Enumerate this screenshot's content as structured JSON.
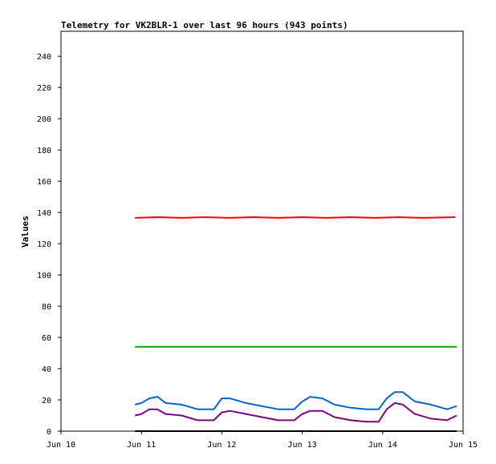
{
  "chart_data": {
    "type": "line",
    "title": "Telemetry for VK2BLR-1 over last 96 hours (943 points)",
    "xlabel": "",
    "ylabel": "Values",
    "x_ticks": [
      "Jun 10",
      "Jun 11",
      "Jun 12",
      "Jun 13",
      "Jun 14",
      "Jun 15"
    ],
    "y_ticks": [
      0,
      20,
      40,
      60,
      80,
      100,
      120,
      140,
      160,
      180,
      200,
      220,
      240
    ],
    "xlim": [
      0,
      5
    ],
    "ylim": [
      0,
      256
    ],
    "grid": false,
    "legend": "none",
    "series": [
      {
        "color": "#ff0000",
        "x": [
          0.92,
          1.2,
          1.5,
          1.8,
          2.1,
          2.4,
          2.7,
          3.0,
          3.3,
          3.6,
          3.9,
          4.2,
          4.5,
          4.9
        ],
        "y": [
          136.5,
          137,
          136.5,
          137,
          136.5,
          137,
          136.5,
          137,
          136.5,
          137,
          136.5,
          137,
          136.5,
          137
        ]
      },
      {
        "color": "#00aa00",
        "x": [
          0.92,
          4.92
        ],
        "y": [
          54,
          54
        ]
      },
      {
        "color": "#0066cc",
        "x": [
          0.92,
          1.0,
          1.1,
          1.2,
          1.3,
          1.5,
          1.7,
          1.9,
          2.0,
          2.1,
          2.3,
          2.5,
          2.7,
          2.9,
          3.0,
          3.1,
          3.25,
          3.4,
          3.6,
          3.8,
          3.95,
          4.05,
          4.15,
          4.25,
          4.4,
          4.6,
          4.8,
          4.92
        ],
        "y": [
          17,
          18,
          21,
          22,
          18,
          17,
          14,
          14,
          21,
          21,
          18,
          16,
          14,
          14,
          19,
          22,
          21,
          17,
          15,
          14,
          14,
          21,
          25,
          25,
          19,
          17,
          14,
          16
        ]
      },
      {
        "color": "#800080",
        "x": [
          0.92,
          1.0,
          1.1,
          1.2,
          1.3,
          1.5,
          1.7,
          1.9,
          2.0,
          2.1,
          2.3,
          2.5,
          2.7,
          2.9,
          3.0,
          3.1,
          3.25,
          3.4,
          3.6,
          3.8,
          3.95,
          4.05,
          4.15,
          4.25,
          4.4,
          4.6,
          4.8,
          4.92
        ],
        "y": [
          10,
          11,
          14,
          14,
          11,
          10,
          7,
          7,
          12,
          13,
          11,
          9,
          7,
          7,
          11,
          13,
          13,
          9,
          7,
          6,
          6,
          14,
          18,
          17,
          11,
          8,
          7,
          10
        ]
      },
      {
        "color": "#000000",
        "x": [
          0.92,
          4.92
        ],
        "y": [
          0,
          0
        ]
      }
    ]
  }
}
